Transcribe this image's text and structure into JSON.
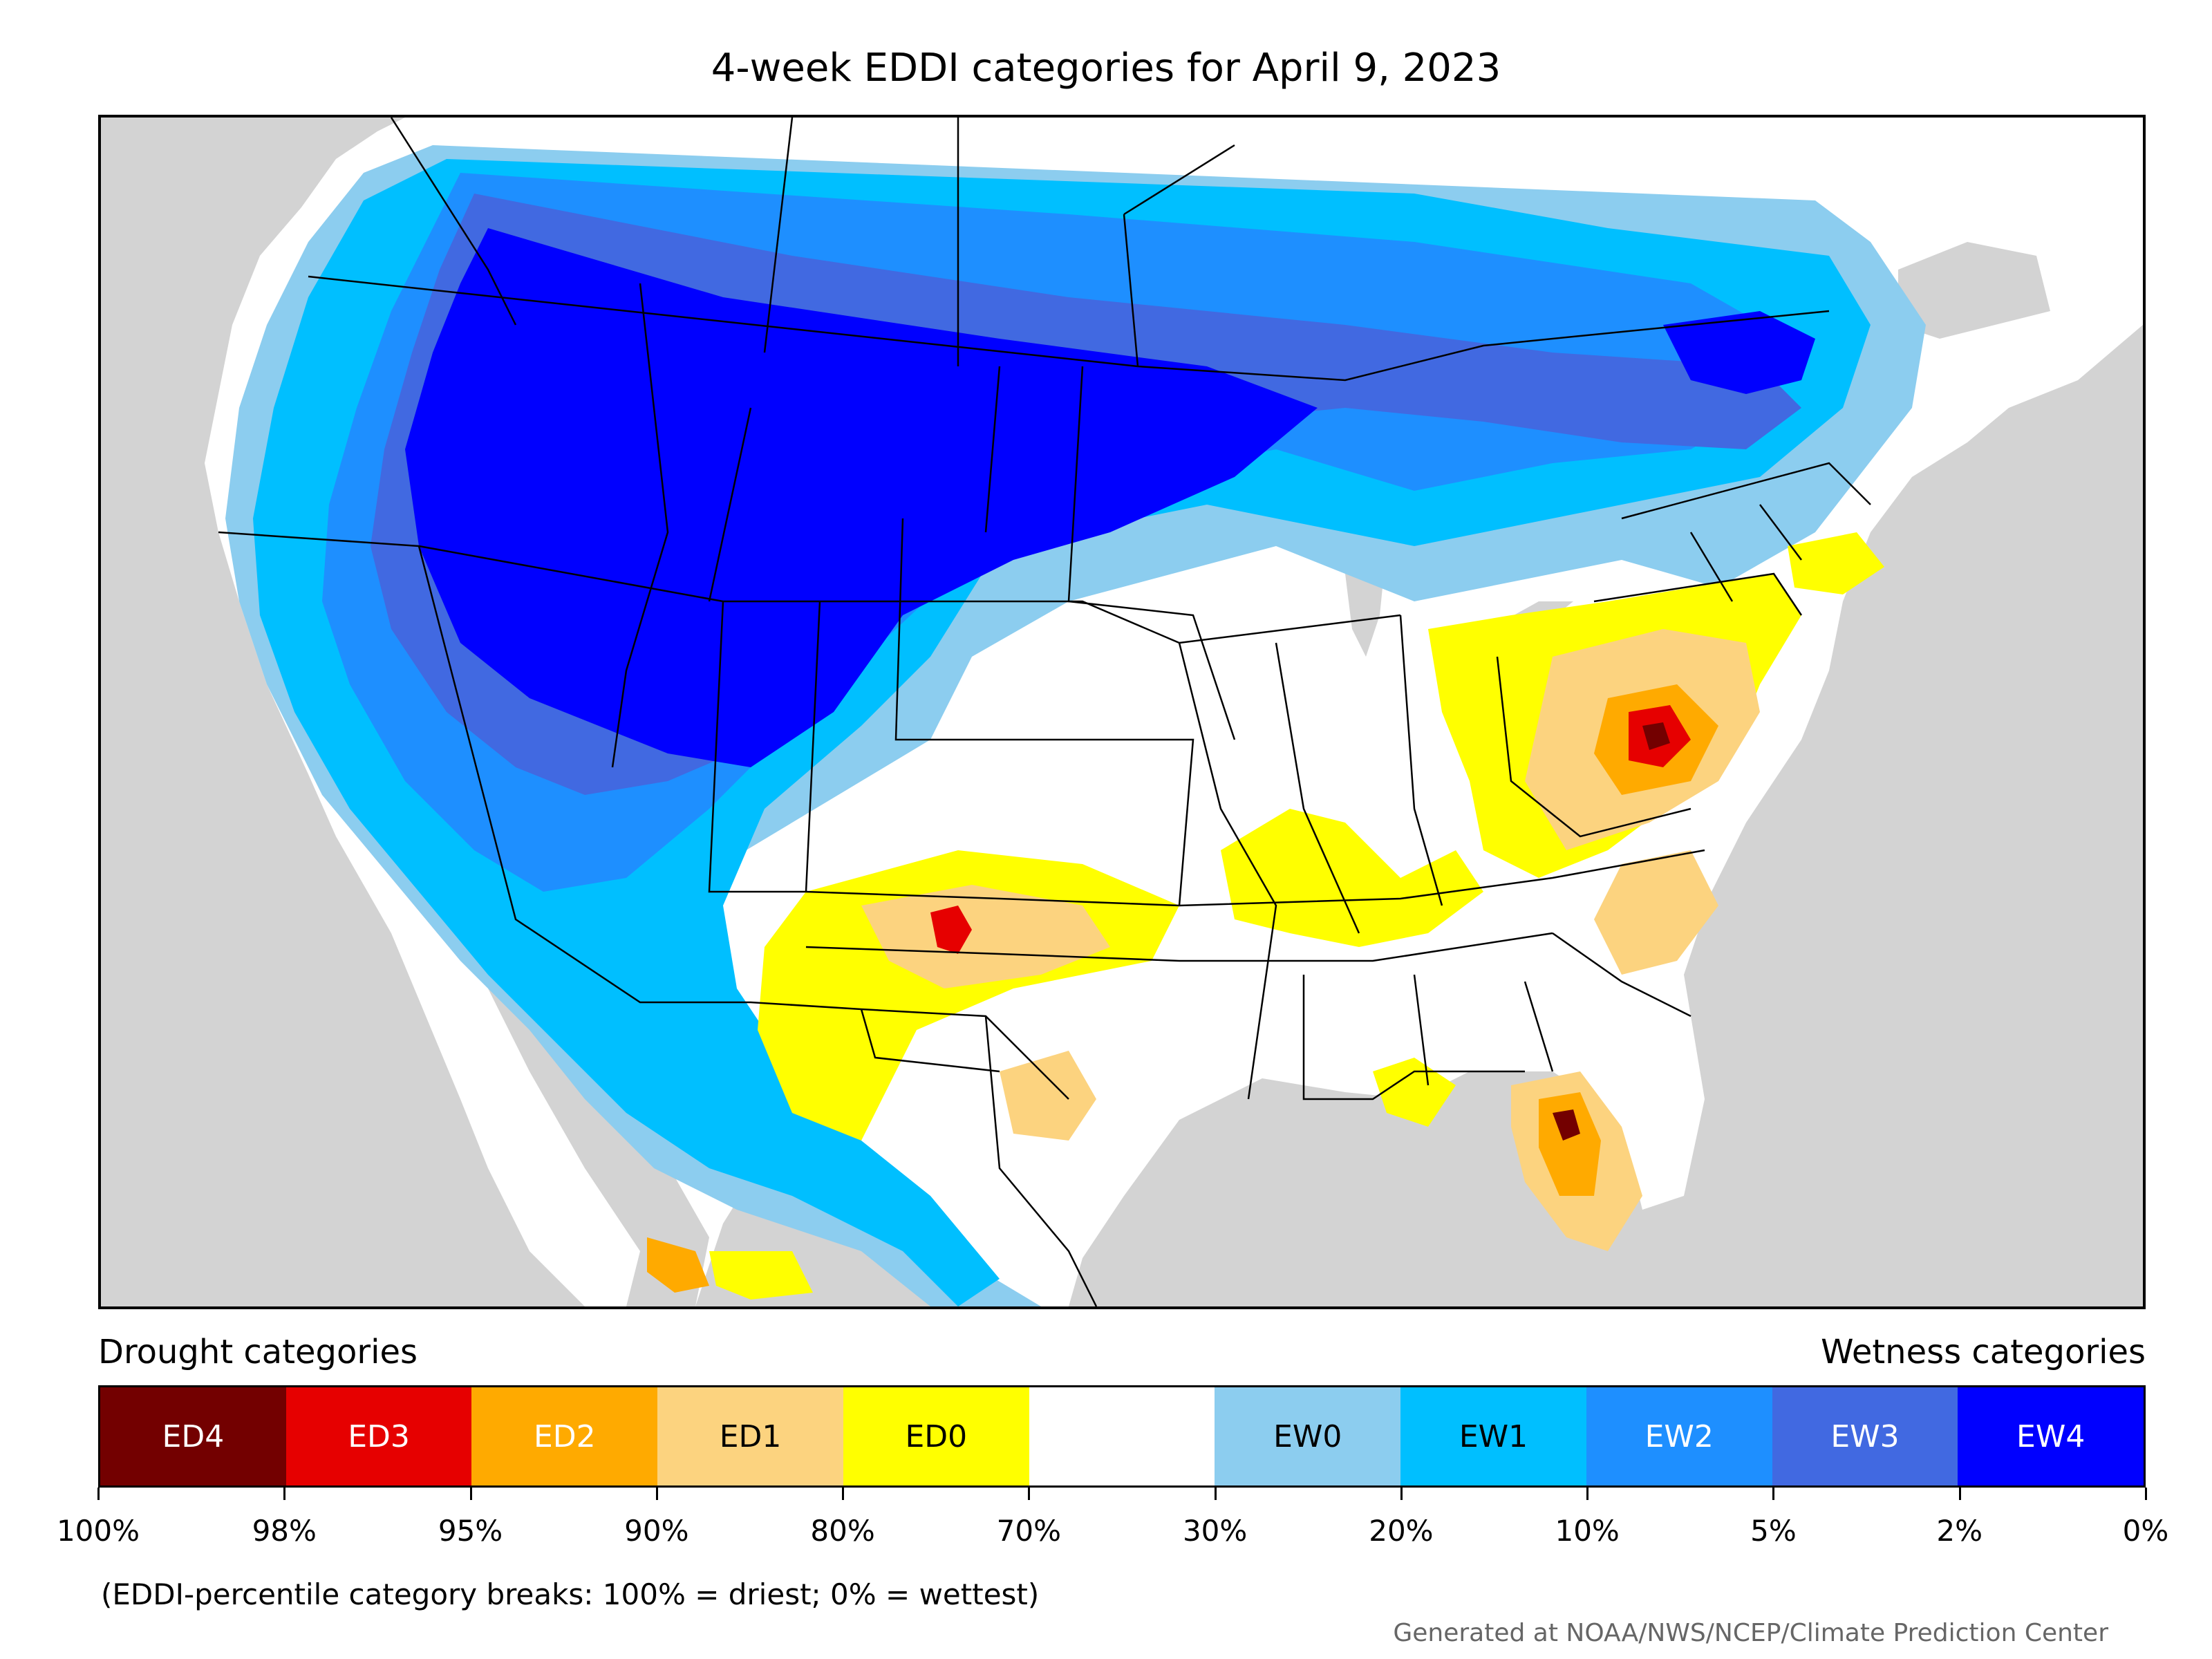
{
  "title": "4-week EDDI categories for April 9, 2023",
  "legend": {
    "drought_heading": "Drought categories",
    "wetness_heading": "Wetness categories",
    "categories": [
      {
        "label": "ED4",
        "color": "#730000",
        "text_color": "#ffffff"
      },
      {
        "label": "ED3",
        "color": "#e60000",
        "text_color": "#ffffff"
      },
      {
        "label": "ED2",
        "color": "#ffaa00",
        "text_color": "#ffffff"
      },
      {
        "label": "ED1",
        "color": "#fcd37f",
        "text_color": "#000000"
      },
      {
        "label": "ED0",
        "color": "#ffff00",
        "text_color": "#000000"
      },
      {
        "label": "",
        "color": "#ffffff",
        "text_color": "#000000"
      },
      {
        "label": "EW0",
        "color": "#8ccdef",
        "text_color": "#000000"
      },
      {
        "label": "EW1",
        "color": "#00bfff",
        "text_color": "#000000"
      },
      {
        "label": "EW2",
        "color": "#1e8fff",
        "text_color": "#ffffff"
      },
      {
        "label": "EW3",
        "color": "#4169e1",
        "text_color": "#ffffff"
      },
      {
        "label": "EW4",
        "color": "#0000ff",
        "text_color": "#ffffff"
      }
    ],
    "breaks": [
      "100%",
      "98%",
      "95%",
      "90%",
      "80%",
      "70%",
      "30%",
      "20%",
      "10%",
      "5%",
      "2%",
      "0%"
    ]
  },
  "note": "(EDDI-percentile category breaks: 100% = driest; 0% = wettest)",
  "credit": "Generated at NOAA/NWS/NCEP/Climate Prediction Center",
  "map": {
    "ocean_color": "#d3d3d3",
    "land_color": "#ffffff",
    "border_color": "#000000"
  }
}
